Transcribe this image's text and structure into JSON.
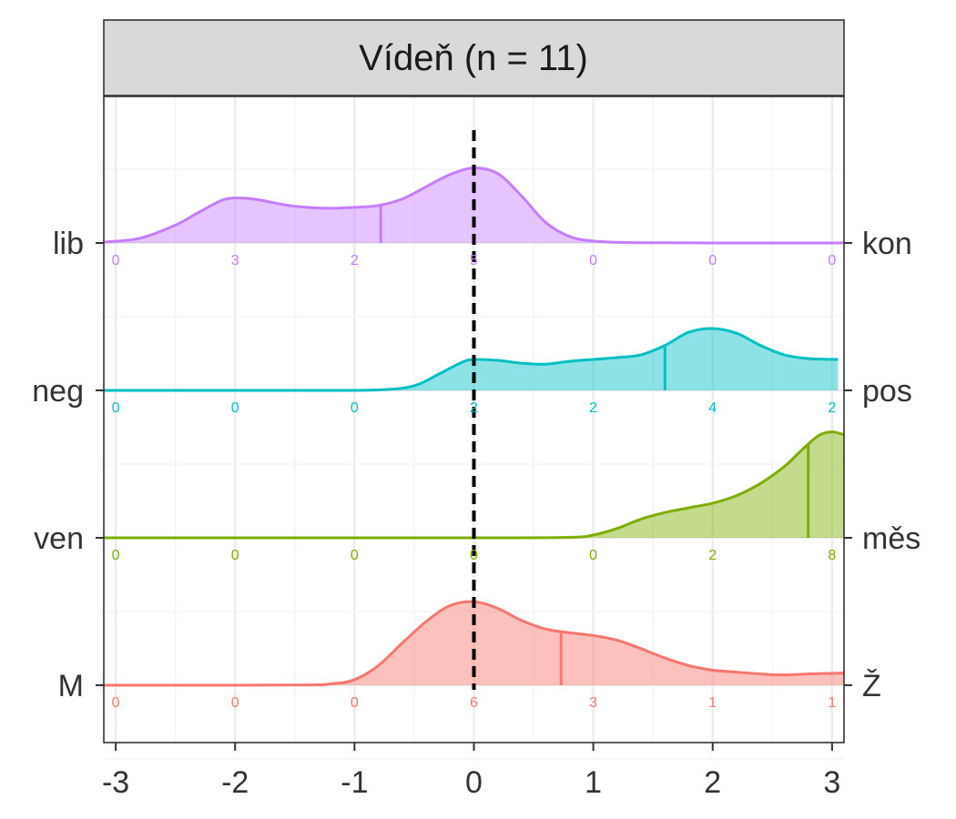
{
  "chart_data": {
    "type": "ridgeline",
    "panel_title": "Vídeň (n = 11)",
    "x_ticks": [
      -3,
      -2,
      -1,
      0,
      1,
      2,
      3
    ],
    "x_tick_labels": [
      "-3",
      "-2",
      "-1",
      "0",
      "1",
      "2",
      "3"
    ],
    "xlim": [
      -3.1,
      3.1
    ],
    "reference_line_x": 0,
    "grid": true,
    "count_positions": [
      -3,
      -2,
      -1,
      0,
      1,
      2,
      3
    ],
    "series": [
      {
        "left_label": "lib",
        "right_label": "kon",
        "color": "#C77CFF",
        "mean": -0.78,
        "counts": [
          0,
          3,
          2,
          5,
          0,
          0,
          0
        ],
        "count_labels": [
          "0",
          "3",
          "2",
          "5",
          "0",
          "0",
          "0"
        ],
        "density_x": [
          -3.1,
          -2.8,
          -2.5,
          -2.3,
          -2.1,
          -1.95,
          -1.8,
          -1.6,
          -1.4,
          -1.2,
          -1.0,
          -0.8,
          -0.6,
          -0.4,
          -0.2,
          0.0,
          0.2,
          0.4,
          0.6,
          0.8,
          1.0,
          1.3,
          1.6,
          2.0,
          2.5,
          3.1
        ],
        "density_y": [
          0.01,
          0.05,
          0.19,
          0.33,
          0.46,
          0.48,
          0.46,
          0.41,
          0.38,
          0.37,
          0.38,
          0.4,
          0.47,
          0.6,
          0.73,
          0.8,
          0.74,
          0.5,
          0.22,
          0.07,
          0.02,
          0.005,
          0.002,
          0.0,
          0.0,
          0.0
        ]
      },
      {
        "left_label": "neg",
        "right_label": "pos",
        "color": "#00BFC4",
        "mean": 1.6,
        "counts": [
          0,
          0,
          0,
          2,
          2,
          4,
          2
        ],
        "count_labels": [
          "0",
          "0",
          "0",
          "2",
          "2",
          "4",
          "2"
        ],
        "density_x": [
          -3.1,
          -1.5,
          -0.8,
          -0.5,
          -0.3,
          -0.1,
          0.0,
          0.2,
          0.4,
          0.6,
          0.8,
          1.0,
          1.2,
          1.4,
          1.6,
          1.8,
          2.0,
          2.2,
          2.4,
          2.6,
          2.8,
          3.05
        ],
        "density_y": [
          0.0,
          0.0,
          0.005,
          0.05,
          0.17,
          0.3,
          0.33,
          0.32,
          0.29,
          0.28,
          0.31,
          0.33,
          0.35,
          0.38,
          0.48,
          0.62,
          0.66,
          0.61,
          0.48,
          0.38,
          0.34,
          0.33
        ]
      },
      {
        "left_label": "ven",
        "right_label": "měs",
        "color": "#7CAE00",
        "mean": 2.8,
        "counts": [
          0,
          0,
          0,
          0,
          0,
          2,
          8
        ],
        "count_labels": [
          "0",
          "0",
          "0",
          "0",
          "0",
          "2",
          "8"
        ],
        "density_x": [
          -3.1,
          0.0,
          0.8,
          1.0,
          1.2,
          1.4,
          1.6,
          1.8,
          2.0,
          2.2,
          2.4,
          2.6,
          2.7,
          2.8,
          2.9,
          3.0,
          3.1
        ],
        "density_y": [
          0.0,
          0.0,
          0.005,
          0.03,
          0.1,
          0.2,
          0.27,
          0.32,
          0.37,
          0.45,
          0.58,
          0.76,
          0.88,
          1.0,
          1.1,
          1.13,
          1.1
        ]
      },
      {
        "left_label": "M",
        "right_label": "Ž",
        "color": "#F8766D",
        "mean": 0.73,
        "counts": [
          0,
          0,
          0,
          6,
          3,
          1,
          1
        ],
        "count_labels": [
          "0",
          "0",
          "0",
          "6",
          "3",
          "1",
          "1"
        ],
        "density_x": [
          -3.1,
          -1.5,
          -1.2,
          -1.0,
          -0.8,
          -0.6,
          -0.4,
          -0.2,
          0.0,
          0.2,
          0.4,
          0.6,
          0.8,
          1.0,
          1.2,
          1.4,
          1.6,
          1.8,
          2.0,
          2.2,
          2.4,
          2.6,
          2.8,
          3.1
        ],
        "density_y": [
          0.0,
          0.002,
          0.015,
          0.06,
          0.21,
          0.45,
          0.68,
          0.85,
          0.89,
          0.82,
          0.69,
          0.6,
          0.56,
          0.53,
          0.48,
          0.39,
          0.29,
          0.21,
          0.16,
          0.14,
          0.12,
          0.11,
          0.12,
          0.13
        ]
      }
    ]
  }
}
